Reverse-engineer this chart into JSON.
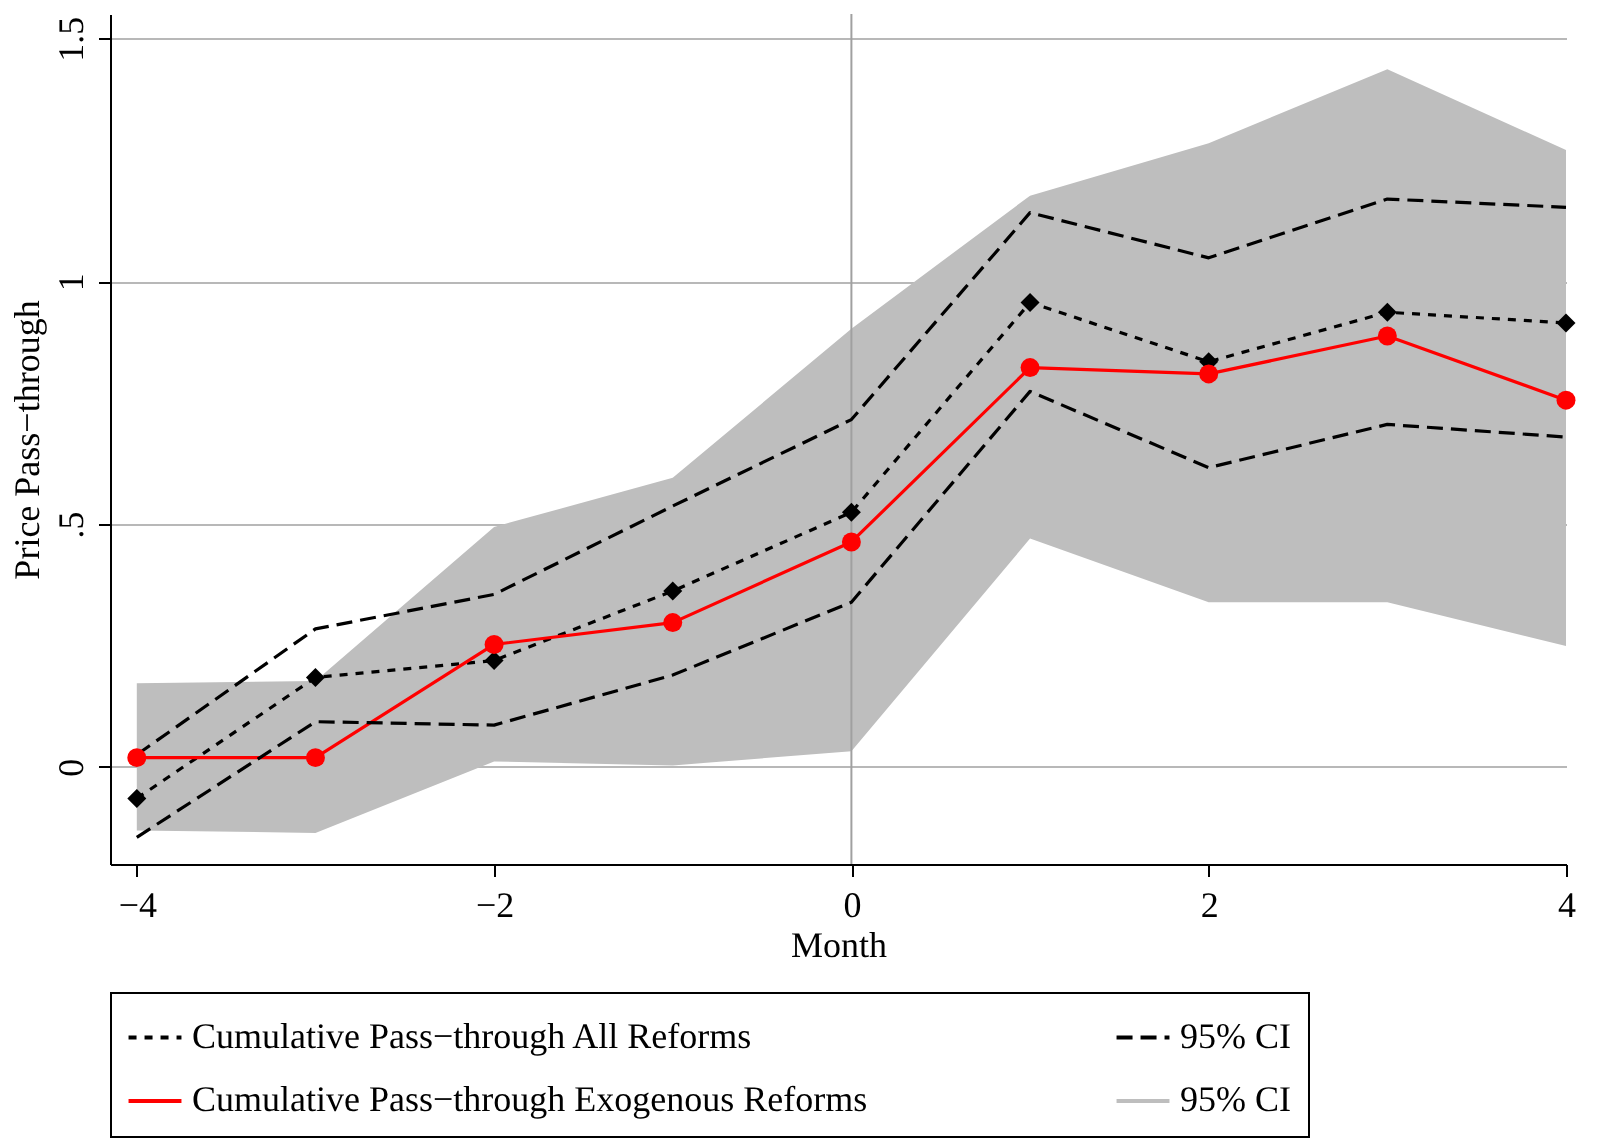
{
  "chart_data": {
    "type": "line",
    "xlabel": "Month",
    "ylabel": "Price Pass−through",
    "x": [
      -4,
      -3,
      -2,
      -1,
      0,
      1,
      2,
      3,
      4
    ],
    "series": [
      {
        "name": "Cumulative Pass−through All Reforms",
        "color": "#000000",
        "line_style": "dotted",
        "marker": "diamond",
        "values": [
          -0.065,
          0.184,
          0.219,
          0.362,
          0.524,
          0.956,
          0.834,
          0.936,
          0.914
        ]
      },
      {
        "name": "Cumulative Pass−through Exogenous Reforms",
        "color": "#ff0000",
        "line_style": "solid",
        "marker": "circle",
        "values": [
          0.019,
          0.019,
          0.252,
          0.297,
          0.463,
          0.822,
          0.809,
          0.887,
          0.755
        ]
      },
      {
        "name": "95% CI",
        "color": "#000000",
        "line_style": "dashed",
        "values": [
          0.025,
          0.284,
          0.355,
          0.537,
          0.715,
          1.141,
          1.048,
          1.169,
          1.152
        ]
      },
      {
        "color": "#000000",
        "line_style": "dashed",
        "values": [
          -0.145,
          0.093,
          0.086,
          0.189,
          0.339,
          0.773,
          0.616,
          0.705,
          0.679
        ]
      },
      {
        "name": "95% CI",
        "type": "area",
        "color": "#bebebe",
        "values": [
          null,
          null,
          null,
          null,
          null,
          null,
          null,
          null,
          null
        ],
        "lower": [
          -0.131,
          -0.136,
          0.011,
          0.003,
          0.032,
          0.47,
          0.339,
          0.339,
          0.249
        ],
        "upper": [
          0.172,
          0.177,
          0.494,
          0.595,
          0.902,
          1.176,
          1.284,
          1.436,
          1.27
        ]
      }
    ],
    "xlim": [
      -4.15,
      4
    ],
    "ylim": [
      -0.2,
      1.55
    ],
    "xticks": [
      {
        "value": -4,
        "label": "−4"
      },
      {
        "value": -2,
        "label": "−2"
      },
      0,
      2,
      4
    ],
    "yticks": [
      0,
      {
        "value": 0.5,
        "label": ".5"
      },
      1,
      1.5
    ],
    "grid": "y",
    "legend": "bottom",
    "ref_lines": [
      {
        "axis": "x",
        "value": 0,
        "color": "#a0a0a0"
      }
    ]
  }
}
